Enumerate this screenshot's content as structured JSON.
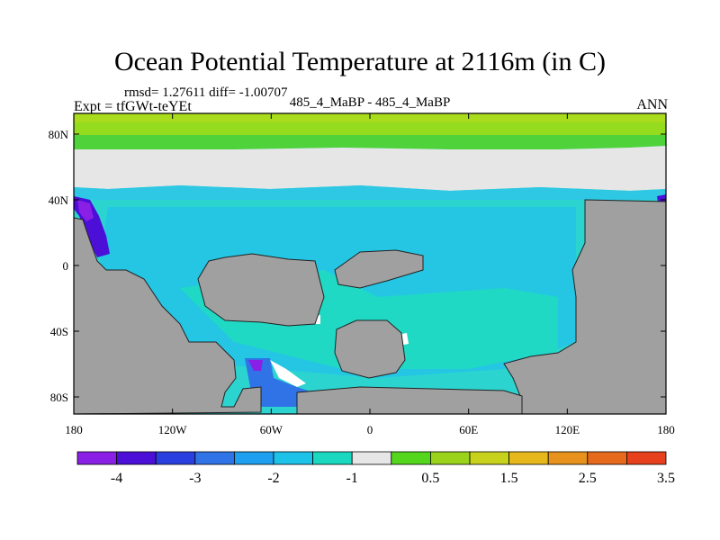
{
  "figure": {
    "title": "Ocean Potential Temperature at 2116m (in C)",
    "stats_line": "rmsd= 1.27611 diff= -1.00707",
    "experiment_line": "Expt = tfGWt-teYEt",
    "cases_line": "485_4_MaBP - 485_4_MaBP",
    "season": "ANN"
  },
  "map_axes": {
    "x_ticks": [
      "180",
      "120W",
      "60W",
      "0",
      "60E",
      "120E",
      "180"
    ],
    "y_ticks": [
      "80N",
      "40N",
      "0",
      "40S",
      "80S"
    ],
    "land_color": "#a0a0a0"
  },
  "colorbar": {
    "colors": [
      "#8a1fe6",
      "#4b0fd8",
      "#2a3fe0",
      "#2f73e6",
      "#1f9ff0",
      "#1cc2e8",
      "#1ad7c0",
      "#e6e6e6",
      "#54d61c",
      "#9ad21c",
      "#c8d21c",
      "#e6b81c",
      "#e6921c",
      "#e66a1c",
      "#e6401c"
    ],
    "labels": [
      "-4",
      "-3",
      "-2",
      "-1",
      "0.5",
      "1.5",
      "2.5",
      "3.5"
    ]
  }
}
